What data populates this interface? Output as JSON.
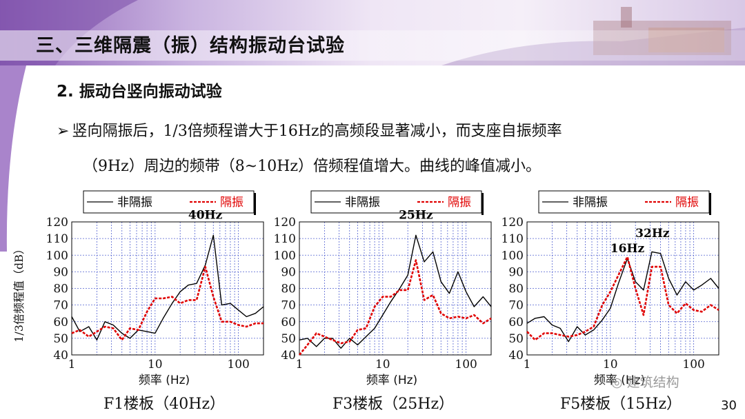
{
  "header": {
    "title": "三、三维隔震（振）结构振动台试验",
    "colors": {
      "banner_left": "#8f63b8",
      "banner_right": "#efe6f5"
    }
  },
  "section": {
    "title": "2. 振动台竖向振动试验"
  },
  "body": {
    "bullet_marker": "➢",
    "line1": "竖向隔振后，1/3倍频程谱大于16Hz的高频段显著减小，而支座自振频率",
    "line2": "（9Hz）周边的频带（8~10Hz）倍频程值增大。曲线的峰值减小。"
  },
  "shared_axis": {
    "ylabel": "1/3倍频程值（dB）"
  },
  "chart_data": [
    {
      "type": "line",
      "caption": "F1楼板（40Hz）",
      "xlabel": "频率 (Hz)",
      "ylabel": "1/3倍频程值（dB）",
      "xscale": "log",
      "xlim": [
        1,
        200
      ],
      "ylim": [
        40,
        120
      ],
      "xticks": [
        1,
        10,
        100
      ],
      "xtick_labels": [
        "1",
        "10",
        "100"
      ],
      "yticks": [
        40,
        50,
        60,
        70,
        80,
        90,
        100,
        110,
        120
      ],
      "grid": true,
      "legend_position": "top",
      "annotations": [
        {
          "text": "40Hz",
          "x": 40,
          "y": 121
        }
      ],
      "series": [
        {
          "name": "非隔振",
          "color": "#000000",
          "dash": "solid",
          "x": [
            1,
            1.25,
            1.6,
            2,
            2.5,
            3.15,
            4,
            5,
            6.3,
            8,
            10,
            12.5,
            16,
            20,
            25,
            31.5,
            40,
            50,
            63,
            80,
            100,
            125,
            160,
            200
          ],
          "y": [
            63,
            54,
            57,
            49,
            60,
            58,
            53,
            50,
            55,
            54,
            53,
            62,
            71,
            78,
            82,
            83,
            94,
            112,
            70,
            71,
            67,
            63,
            65,
            69
          ]
        },
        {
          "name": "隔振",
          "color": "#e00000",
          "dash": "dashed",
          "x": [
            1,
            1.25,
            1.6,
            2,
            2.5,
            3.15,
            4,
            5,
            6.3,
            8,
            10,
            12.5,
            16,
            20,
            25,
            31.5,
            40,
            50,
            63,
            80,
            100,
            125,
            160,
            200
          ],
          "y": [
            53,
            55,
            51,
            54,
            57,
            56,
            49,
            56,
            55,
            66,
            74,
            74,
            75,
            71,
            73,
            73,
            93,
            75,
            60,
            60,
            58,
            57,
            59,
            59
          ]
        }
      ]
    },
    {
      "type": "line",
      "caption": "F3楼板（25Hz）",
      "xlabel": "频率 (Hz)",
      "ylabel": "1/3倍频程值（dB）",
      "xscale": "log",
      "xlim": [
        1,
        200
      ],
      "ylim": [
        40,
        120
      ],
      "xticks": [
        1,
        10,
        100
      ],
      "xtick_labels": [
        "1",
        "10",
        "100"
      ],
      "yticks": [
        40,
        50,
        60,
        70,
        80,
        90,
        100,
        110,
        120
      ],
      "grid": true,
      "legend_position": "top",
      "annotations": [
        {
          "text": "25Hz",
          "x": 25,
          "y": 121
        }
      ],
      "series": [
        {
          "name": "非隔振",
          "color": "#000000",
          "dash": "solid",
          "x": [
            1,
            1.25,
            1.6,
            2,
            2.5,
            3.15,
            4,
            5,
            6.3,
            8,
            10,
            12.5,
            16,
            20,
            25,
            31.5,
            40,
            50,
            63,
            80,
            100,
            125,
            160,
            200
          ],
          "y": [
            49,
            50,
            45,
            50,
            50,
            44,
            50,
            46,
            51,
            56,
            64,
            72,
            80,
            88,
            112,
            96,
            102,
            84,
            77,
            90,
            78,
            69,
            75,
            69
          ]
        },
        {
          "name": "隔振",
          "color": "#e00000",
          "dash": "dashed",
          "x": [
            1,
            1.25,
            1.6,
            2,
            2.5,
            3.15,
            4,
            5,
            6.3,
            8,
            10,
            12.5,
            16,
            20,
            25,
            31.5,
            40,
            50,
            63,
            80,
            100,
            125,
            160,
            200
          ],
          "y": [
            40,
            46,
            53,
            51,
            49,
            47,
            48,
            55,
            56,
            69,
            75,
            75,
            79,
            79,
            97,
            73,
            76,
            65,
            62,
            63,
            62,
            64,
            59,
            62
          ]
        }
      ]
    },
    {
      "type": "line",
      "caption": "F5楼板（15Hz）",
      "xlabel": "频率 (Hz)",
      "ylabel": "1/3倍频程值（dB）",
      "xscale": "log",
      "xlim": [
        1,
        200
      ],
      "ylim": [
        40,
        120
      ],
      "xticks": [
        1,
        10,
        100
      ],
      "xtick_labels": [
        "1",
        "10",
        "100"
      ],
      "yticks": [
        40,
        50,
        60,
        70,
        80,
        90,
        100,
        110,
        120
      ],
      "grid": true,
      "legend_position": "top",
      "annotations": [
        {
          "text": "16Hz",
          "x": 16,
          "y": 101
        },
        {
          "text": "32Hz",
          "x": 32,
          "y": 110
        }
      ],
      "series": [
        {
          "name": "非隔振",
          "color": "#000000",
          "dash": "solid",
          "x": [
            1,
            1.25,
            1.6,
            2,
            2.5,
            3.15,
            4,
            5,
            6.3,
            8,
            10,
            12.5,
            16,
            20,
            25,
            31.5,
            40,
            50,
            63,
            80,
            100,
            125,
            160,
            200
          ],
          "y": [
            59,
            62,
            63,
            58,
            56,
            48,
            57,
            52,
            55,
            61,
            68,
            83,
            98,
            84,
            79,
            102,
            101,
            86,
            76,
            84,
            79,
            82,
            86,
            80
          ]
        },
        {
          "name": "隔振",
          "color": "#e00000",
          "dash": "dashed",
          "x": [
            1,
            1.25,
            1.6,
            2,
            2.5,
            3.15,
            4,
            5,
            6.3,
            8,
            10,
            12.5,
            16,
            20,
            25,
            31.5,
            40,
            50,
            63,
            80,
            100,
            125,
            160,
            200
          ],
          "y": [
            54,
            49,
            53,
            53,
            52,
            51,
            52,
            54,
            57,
            70,
            78,
            88,
            99,
            80,
            64,
            93,
            93,
            70,
            65,
            71,
            67,
            66,
            70,
            67
          ]
        }
      ]
    }
  ],
  "footer": {
    "page_number": "30",
    "watermark": "建筑结构"
  }
}
